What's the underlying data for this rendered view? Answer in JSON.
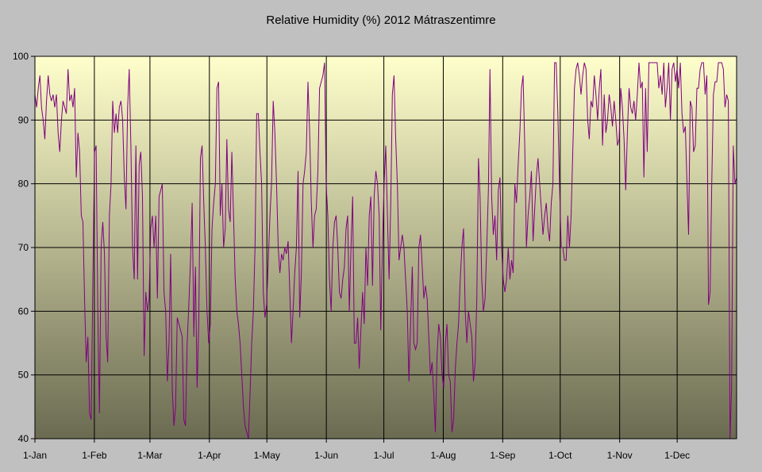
{
  "chart_data": {
    "type": "line",
    "title": "Relative Humidity (%) 2012 Mátraszentimre",
    "xlabel": "",
    "ylabel": "",
    "x_tick_labels": [
      "1-Jan",
      "1-Feb",
      "1-Mar",
      "1-Apr",
      "1-May",
      "1-Jun",
      "1-Jul",
      "1-Aug",
      "1-Sep",
      "1-Oct",
      "1-Nov",
      "1-Dec"
    ],
    "x_tick_day_of_year": [
      1,
      32,
      61,
      92,
      122,
      153,
      183,
      214,
      245,
      275,
      306,
      336
    ],
    "y_ticks": [
      40,
      50,
      60,
      70,
      80,
      90,
      100
    ],
    "ylim": [
      40,
      100
    ],
    "xlim_days": [
      1,
      367
    ],
    "grid": true,
    "legend": "none",
    "colors": {
      "line": "#800080",
      "plot_top": "#ffffcc",
      "plot_bottom": "#6b6b52",
      "background": "#c0c0c0"
    },
    "series": [
      {
        "color": "#800080",
        "values": [
          94,
          92,
          95,
          97,
          92,
          90,
          87,
          93,
          97,
          94,
          93,
          94,
          92,
          94,
          88,
          85,
          90,
          93,
          92,
          91,
          98,
          93,
          94,
          92,
          95,
          81,
          88,
          85,
          75,
          74,
          62,
          52,
          56,
          44,
          43,
          65,
          85,
          86,
          60,
          44,
          70,
          74,
          69,
          56,
          52,
          75,
          80,
          93,
          88,
          91,
          88,
          92,
          93,
          90,
          81,
          76,
          92,
          98,
          86,
          70,
          65,
          86,
          65,
          83,
          85,
          78,
          53,
          63,
          60,
          62,
          73,
          75,
          70,
          75,
          62,
          78,
          79,
          80,
          63,
          60,
          49,
          55,
          69,
          48,
          42,
          45,
          59,
          58,
          57,
          56,
          43,
          42,
          55,
          61,
          68,
          77,
          56,
          67,
          48,
          58,
          84,
          86,
          77,
          70,
          60,
          55,
          58,
          73,
          77,
          80,
          95,
          96,
          75,
          80,
          70,
          73,
          87,
          76,
          74,
          85,
          75,
          65,
          60,
          58,
          55,
          50,
          45,
          42,
          41,
          40,
          47,
          55,
          60,
          70,
          91,
          91,
          85,
          80,
          63,
          59,
          61,
          68,
          75,
          80,
          93,
          88,
          80,
          70,
          66,
          69,
          68,
          70,
          69,
          71,
          63,
          55,
          60,
          66,
          70,
          82,
          59,
          66,
          80,
          82,
          85,
          96,
          88,
          77,
          70,
          75,
          76,
          82,
          95,
          96,
          97,
          99,
          80,
          75,
          65,
          60,
          70,
          74,
          75,
          70,
          63,
          62,
          65,
          67,
          73,
          75,
          60,
          70,
          78,
          55,
          55,
          59,
          51,
          57,
          63,
          58,
          70,
          64,
          75,
          78,
          64,
          78,
          82,
          80,
          75,
          57,
          70,
          80,
          86,
          75,
          65,
          77,
          94,
          97,
          87,
          80,
          68,
          70,
          72,
          70,
          65,
          60,
          49,
          58,
          67,
          55,
          54,
          55,
          70,
          72,
          67,
          62,
          64,
          62,
          56,
          50,
          52,
          47,
          41,
          53,
          58,
          56,
          50,
          48,
          55,
          58,
          50,
          49,
          41,
          43,
          51,
          55,
          58,
          65,
          70,
          73,
          60,
          55,
          60,
          58,
          56,
          49,
          52,
          62,
          84,
          78,
          65,
          60,
          62,
          70,
          79,
          98,
          78,
          72,
          75,
          68,
          79,
          81,
          70,
          65,
          63,
          65,
          70,
          65,
          68,
          66,
          80,
          77,
          83,
          88,
          95,
          97,
          86,
          70,
          75,
          78,
          82,
          71,
          76,
          81,
          84,
          80,
          76,
          72,
          75,
          77,
          73,
          71,
          77,
          80,
          99,
          99,
          91,
          80,
          70,
          70,
          68,
          68,
          75,
          70,
          75,
          85,
          95,
          98,
          99,
          97,
          94,
          97,
          99,
          98,
          90,
          87,
          93,
          92,
          97,
          94,
          90,
          95,
          98,
          86,
          94,
          88,
          90,
          94,
          92,
          89,
          93,
          90,
          86,
          87,
          95,
          92,
          87,
          79,
          88,
          95,
          92,
          91,
          93,
          90,
          94,
          99,
          95,
          96,
          81,
          95,
          85,
          99,
          99,
          99,
          99,
          99,
          99,
          95,
          97,
          94,
          99,
          92,
          95,
          99,
          90,
          98,
          99,
          96,
          98,
          95,
          99,
          91,
          88,
          89,
          80,
          72,
          93,
          92,
          85,
          86,
          95,
          95,
          98,
          99,
          99,
          94,
          97,
          61,
          63,
          80,
          94,
          96,
          96,
          99,
          99,
          99,
          98,
          92,
          94,
          93,
          40,
          48,
          86,
          80,
          81
        ]
      }
    ]
  }
}
